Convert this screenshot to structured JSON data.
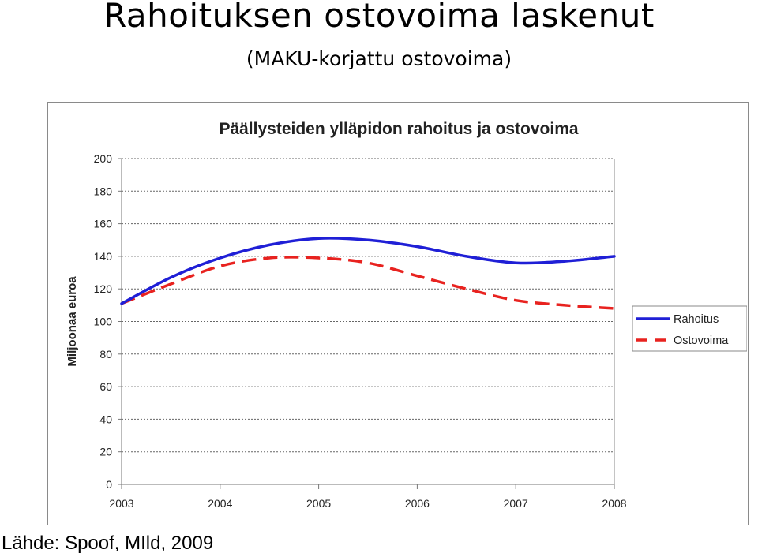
{
  "slide": {
    "title": "Rahoituksen ostovoima laskenut",
    "subtitle": "(MAKU-korjattu ostovoima)",
    "source": "Lähde: Spoof, MIld, 2009"
  },
  "chart_data": {
    "type": "line",
    "title": "Päällysteiden ylläpidon rahoitus ja ostovoima",
    "xlabel": "",
    "ylabel": "Miljoonaa euroa",
    "xlim": [
      2003,
      2008
    ],
    "ylim": [
      0,
      200
    ],
    "x_ticks": [
      "2003",
      "2004",
      "2005",
      "2006",
      "2007",
      "2008"
    ],
    "y_ticks": [
      "0",
      "20",
      "40",
      "60",
      "80",
      "100",
      "120",
      "140",
      "160",
      "180",
      "200"
    ],
    "grid": true,
    "legend_position": "right",
    "series": [
      {
        "name": "Rahoitus",
        "color": "#1f1fd6",
        "style": "solid",
        "x": [
          2003,
          2003.5,
          2004,
          2004.5,
          2005,
          2005.5,
          2006,
          2006.5,
          2007,
          2007.5,
          2008
        ],
        "y": [
          111,
          127,
          139,
          147,
          151,
          150,
          146,
          140,
          136,
          137,
          140
        ]
      },
      {
        "name": "Ostovoima",
        "color": "#e8221f",
        "style": "dashed",
        "x": [
          2003,
          2003.5,
          2004,
          2004.5,
          2005,
          2005.5,
          2006,
          2006.5,
          2007,
          2007.5,
          2008
        ],
        "y": [
          111,
          123,
          134,
          139,
          139,
          136,
          128,
          120,
          113,
          110,
          108
        ]
      }
    ]
  }
}
